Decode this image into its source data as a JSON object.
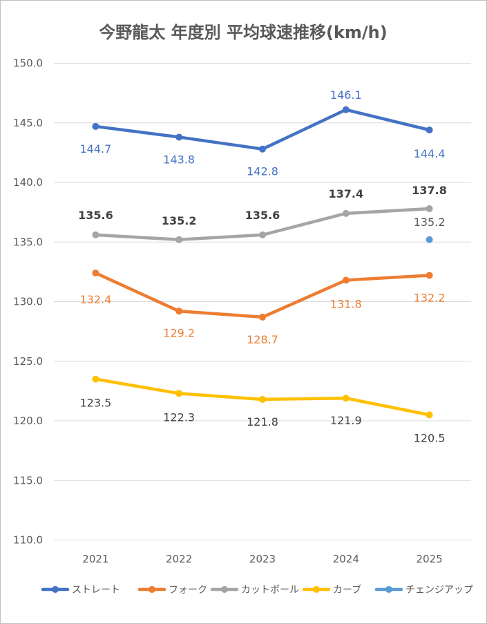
{
  "chart_data": {
    "type": "line",
    "title": "今野龍太 年度別 平均球速推移(km/h)",
    "categories": [
      "2021",
      "2022",
      "2023",
      "2024",
      "2025"
    ],
    "ylim": [
      110,
      150
    ],
    "yticks": [
      "150.0",
      "145.0",
      "140.0",
      "135.0",
      "130.0",
      "125.0",
      "120.0",
      "115.0",
      "110.0"
    ],
    "grid": true,
    "legend": "bottom",
    "series": [
      {
        "name": "ストレート",
        "color": "#4472C4",
        "values": [
          144.7,
          143.8,
          142.8,
          146.1,
          144.4
        ],
        "labels": [
          "144.7",
          "143.8",
          "142.8",
          "146.1",
          "144.4"
        ],
        "label_color": "#4472C4"
      },
      {
        "name": "フォーク",
        "color": "#ED7D31",
        "values": [
          132.4,
          129.2,
          128.7,
          131.8,
          132.2
        ],
        "labels": [
          "132.4",
          "129.2",
          "128.7",
          "131.8",
          "132.2"
        ],
        "label_color": "#ED7D31"
      },
      {
        "name": "カットボール",
        "color": "#A5A5A5",
        "values": [
          135.6,
          135.2,
          135.6,
          137.4,
          137.8
        ],
        "labels": [
          "135.6",
          "135.2",
          "135.6",
          "137.4",
          "137.8"
        ],
        "label_color": "#404040",
        "bold_labels": true
      },
      {
        "name": "カーブ",
        "color": "#FFC000",
        "values": [
          123.5,
          122.3,
          121.8,
          121.9,
          120.5
        ],
        "labels": [
          "123.5",
          "122.3",
          "121.8",
          "121.9",
          "120.5"
        ],
        "label_color": "#404040"
      },
      {
        "name": "チェンジアップ",
        "color": "#5B9BD5",
        "values": [
          null,
          null,
          null,
          null,
          135.2
        ],
        "labels": [
          null,
          null,
          null,
          null,
          "135.2"
        ],
        "label_color": "#595959"
      }
    ]
  }
}
